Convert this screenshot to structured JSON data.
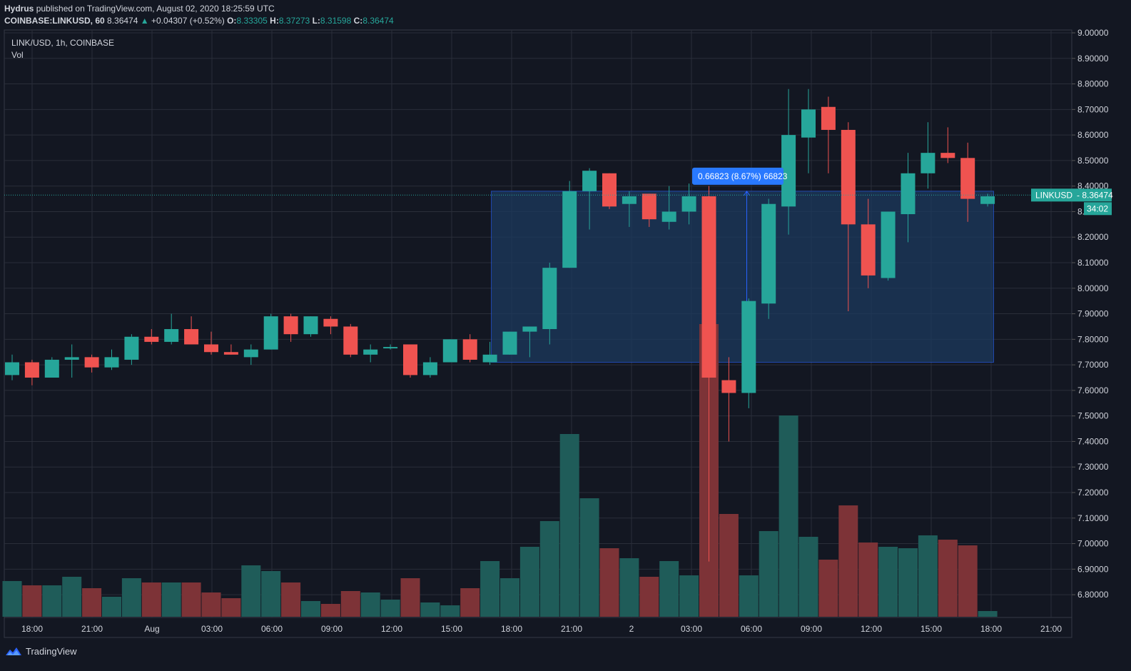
{
  "header": {
    "publisher": "Hydrus",
    "published_text": "published on TradingView.com, August 02, 2020 18:25:59 UTC",
    "symbol": "COINBASE:LINKUSD, 60",
    "price": "8.36474",
    "change_arrow": "▲",
    "change": "+0.04307 (+0.52%)",
    "o_label": "O:",
    "o_value": "8.33305",
    "h_label": "H:",
    "h_value": "8.37273",
    "l_label": "L:",
    "l_value": "8.31598",
    "c_label": "C:",
    "c_value": "8.36474"
  },
  "legend": {
    "title": "LINK/USD, 1h, COINBASE",
    "volume_label": "Vol"
  },
  "price_tag": {
    "label": "LINKUSD",
    "value": "8.36474",
    "countdown": "34:02"
  },
  "measure": {
    "label": "0.66823 (8.67%) 66823"
  },
  "footer": {
    "brand": "TradingView"
  },
  "colors": {
    "background": "#131722",
    "up": "#26a69a",
    "down": "#ef5350",
    "vol_up": "#1f5c59",
    "vol_down": "#7d3337",
    "grid": "#2a2e39",
    "measure_fill": "#1c3a5e",
    "measure_label": "#2962ff"
  },
  "chart_data": {
    "type": "candlestick",
    "ylim": [
      6.75,
      9.0
    ],
    "y_ticks": [
      "9.00000",
      "8.90000",
      "8.80000",
      "8.70000",
      "8.60000",
      "8.50000",
      "8.40000",
      "8.30000",
      "8.20000",
      "8.10000",
      "8.00000",
      "7.90000",
      "7.80000",
      "7.70000",
      "7.60000",
      "7.50000",
      "7.40000",
      "7.30000",
      "7.20000",
      "7.10000",
      "7.00000",
      "6.90000",
      "6.80000"
    ],
    "x_ticks": [
      "18:00",
      "21:00",
      "Aug",
      "03:00",
      "06:00",
      "09:00",
      "12:00",
      "15:00",
      "18:00",
      "21:00",
      "2",
      "03:00",
      "06:00",
      "09:00",
      "12:00",
      "15:00",
      "18:00",
      "21:00"
    ],
    "candles": [
      {
        "o": 7.66,
        "h": 7.74,
        "l": 7.64,
        "c": 7.71,
        "v": 0.25
      },
      {
        "o": 7.71,
        "h": 7.72,
        "l": 7.62,
        "c": 7.65,
        "v": 0.22
      },
      {
        "o": 7.65,
        "h": 7.73,
        "l": 7.65,
        "c": 7.72,
        "v": 0.22
      },
      {
        "o": 7.72,
        "h": 7.78,
        "l": 7.65,
        "c": 7.73,
        "v": 0.28
      },
      {
        "o": 7.73,
        "h": 7.74,
        "l": 7.67,
        "c": 7.69,
        "v": 0.2
      },
      {
        "o": 7.69,
        "h": 7.76,
        "l": 7.68,
        "c": 7.73,
        "v": 0.14
      },
      {
        "o": 7.72,
        "h": 7.82,
        "l": 7.7,
        "c": 7.81,
        "v": 0.27
      },
      {
        "o": 7.81,
        "h": 7.84,
        "l": 7.78,
        "c": 7.79,
        "v": 0.24
      },
      {
        "o": 7.79,
        "h": 7.9,
        "l": 7.78,
        "c": 7.84,
        "v": 0.24
      },
      {
        "o": 7.84,
        "h": 7.89,
        "l": 7.78,
        "c": 7.78,
        "v": 0.24
      },
      {
        "o": 7.78,
        "h": 7.83,
        "l": 7.74,
        "c": 7.75,
        "v": 0.17
      },
      {
        "o": 7.75,
        "h": 7.78,
        "l": 7.74,
        "c": 7.74,
        "v": 0.13
      },
      {
        "o": 7.73,
        "h": 7.78,
        "l": 7.7,
        "c": 7.76,
        "v": 0.36
      },
      {
        "o": 7.76,
        "h": 7.9,
        "l": 7.76,
        "c": 7.89,
        "v": 0.32
      },
      {
        "o": 7.89,
        "h": 7.9,
        "l": 7.79,
        "c": 7.82,
        "v": 0.24
      },
      {
        "o": 7.82,
        "h": 7.89,
        "l": 7.81,
        "c": 7.89,
        "v": 0.11
      },
      {
        "o": 7.88,
        "h": 7.89,
        "l": 7.82,
        "c": 7.85,
        "v": 0.09
      },
      {
        "o": 7.85,
        "h": 7.86,
        "l": 7.73,
        "c": 7.74,
        "v": 0.18
      },
      {
        "o": 7.74,
        "h": 7.78,
        "l": 7.71,
        "c": 7.76,
        "v": 0.17
      },
      {
        "o": 7.77,
        "h": 7.78,
        "l": 7.76,
        "c": 7.77,
        "v": 0.12
      },
      {
        "o": 7.78,
        "h": 7.78,
        "l": 7.65,
        "c": 7.66,
        "v": 0.27
      },
      {
        "o": 7.66,
        "h": 7.73,
        "l": 7.65,
        "c": 7.71,
        "v": 0.1
      },
      {
        "o": 7.71,
        "h": 7.8,
        "l": 7.71,
        "c": 7.8,
        "v": 0.08
      },
      {
        "o": 7.8,
        "h": 7.82,
        "l": 7.71,
        "c": 7.72,
        "v": 0.2
      },
      {
        "o": 7.71,
        "h": 7.79,
        "l": 7.7,
        "c": 7.74,
        "v": 0.39
      },
      {
        "o": 7.74,
        "h": 7.83,
        "l": 7.74,
        "c": 7.83,
        "v": 0.27
      },
      {
        "o": 7.83,
        "h": 7.85,
        "l": 7.73,
        "c": 7.85,
        "v": 0.49
      },
      {
        "o": 7.84,
        "h": 8.1,
        "l": 7.78,
        "c": 8.08,
        "v": 0.67
      },
      {
        "o": 8.08,
        "h": 8.42,
        "l": 8.08,
        "c": 8.38,
        "v": 1.28
      },
      {
        "o": 8.38,
        "h": 8.47,
        "l": 8.23,
        "c": 8.46,
        "v": 0.83
      },
      {
        "o": 8.45,
        "h": 8.45,
        "l": 8.31,
        "c": 8.32,
        "v": 0.48
      },
      {
        "o": 8.33,
        "h": 8.38,
        "l": 8.24,
        "c": 8.36,
        "v": 0.41
      },
      {
        "o": 8.37,
        "h": 8.37,
        "l": 8.24,
        "c": 8.27,
        "v": 0.28
      },
      {
        "o": 8.26,
        "h": 8.4,
        "l": 8.23,
        "c": 8.3,
        "v": 0.39
      },
      {
        "o": 8.3,
        "h": 8.41,
        "l": 8.25,
        "c": 8.36,
        "v": 0.29
      },
      {
        "o": 8.36,
        "h": 8.4,
        "l": 6.93,
        "c": 7.65,
        "v": 2.05
      },
      {
        "o": 7.64,
        "h": 7.73,
        "l": 7.4,
        "c": 7.59,
        "v": 0.72
      },
      {
        "o": 7.59,
        "h": 7.96,
        "l": 7.53,
        "c": 7.95,
        "v": 0.29
      },
      {
        "o": 7.94,
        "h": 8.35,
        "l": 7.88,
        "c": 8.33,
        "v": 0.6
      },
      {
        "o": 8.32,
        "h": 8.78,
        "l": 8.21,
        "c": 8.6,
        "v": 1.41
      },
      {
        "o": 8.59,
        "h": 8.78,
        "l": 8.45,
        "c": 8.7,
        "v": 0.56
      },
      {
        "o": 8.71,
        "h": 8.75,
        "l": 8.45,
        "c": 8.62,
        "v": 0.4
      },
      {
        "o": 8.62,
        "h": 8.65,
        "l": 7.91,
        "c": 8.25,
        "v": 0.78
      },
      {
        "o": 8.25,
        "h": 8.35,
        "l": 8.0,
        "c": 8.05,
        "v": 0.52
      },
      {
        "o": 8.04,
        "h": 8.3,
        "l": 8.03,
        "c": 8.3,
        "v": 0.49
      },
      {
        "o": 8.29,
        "h": 8.53,
        "l": 8.18,
        "c": 8.45,
        "v": 0.48
      },
      {
        "o": 8.45,
        "h": 8.65,
        "l": 8.39,
        "c": 8.53,
        "v": 0.57
      },
      {
        "o": 8.53,
        "h": 8.63,
        "l": 8.49,
        "c": 8.51,
        "v": 0.54
      },
      {
        "o": 8.51,
        "h": 8.57,
        "l": 8.26,
        "c": 8.35,
        "v": 0.5
      },
      {
        "o": 8.33,
        "h": 8.37,
        "l": 8.32,
        "c": 8.36,
        "v": 0.04
      }
    ]
  }
}
